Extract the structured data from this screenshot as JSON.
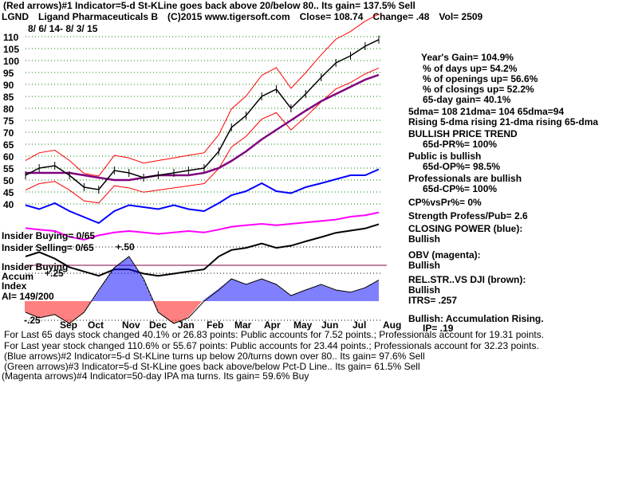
{
  "header": {
    "line1": "(Red arrows)#1 Indicator=5-d St-KLine goes back above 20/below 80.. Its gain= 137.5% Sell",
    "ticker": "LGND",
    "company": "Ligand Pharmaceuticals B",
    "copyright": "(C)2015 www.tigersoft.com",
    "close": "Close=  108.74",
    "change": "Change= .48",
    "vol": "Vol= 2509",
    "date_range": "8/ 6/ 14- 8/ 3/ 15"
  },
  "panel": [
    "Year's Gain= 104.9%",
    "% of days up= 54.2%",
    "% of openings up= 56.6%",
    "% of closings up= 52.2%",
    "65-day gain= 40.1%",
    "5dma= 108 21dma= 104 65dma=94",
    "Rising 5-dma  rising 21-dma  rising 65-dma",
    "BULLISH PRICE TREND",
    "65d-PR%= 100%",
    "Public is bullish",
    "65d-OP%= 98.5%",
    "Professionals are bullish",
    "65d-CP%= 100%",
    "CP%vsPr%=  0%",
    "Strength Profess/Pub= 2.6",
    "CLOSING POWER (blue):",
    "Bullish",
    "OBV (magenta):",
    "Bullish",
    "REL.STR..VS DJI (brown):",
    "Bullish",
    "ITRS= .257",
    "Bullish: Accumulation Rising.",
    "IP=  .19"
  ],
  "left_labels": {
    "insider_buying": "Insider Buying= 0/65",
    "insider_selling": "Insider Selling= 0/65",
    "insider_buying2": "Insider Buying",
    "accum": "Accum",
    "index": "Index",
    "ai": "AI= 149/200"
  },
  "footer": [
    "For Last 65 days stock changed  40.1% or  26.83 points:  Public accounts for  7.52 points.;  Professionals account for  19.31 points.",
    "For Last year stock changed  110.6% or  55.67 points:  Public accounts for  23.44 points.;  Professionals account for  32.23 points.",
    "(Blue arrows)#2 Indicator=5-d St-KLine turns up below 20/turns down over 80.. Its gain= 97.6% Sell",
    "(Green arrows)#3 Indicator=5-d St-KLine goes back above/below Pct-D Line.. Its gain= 61.5% Sell",
    "(Magenta arrows)#4 Indicator=50-day IPA ma turns. Its gain= 59.6% Buy"
  ],
  "colors": {
    "price": "#000000",
    "bands": "#ff0000",
    "ma65": "#800080",
    "closing_power": "#0000ff",
    "obv": "#ff00ff",
    "rel_strength": "#000000",
    "accum_pos": "#0000ff",
    "accum_neg": "#ff0000",
    "grid": "#008000"
  },
  "chart_data": {
    "type": "line",
    "title": "",
    "y_ticks": [
      110,
      105,
      100,
      95,
      90,
      85,
      80,
      75,
      70,
      65,
      60,
      55,
      50,
      45,
      40
    ],
    "ylim": [
      40,
      110
    ],
    "accum_ticks": [
      "+.50",
      "+.25",
      "-.25"
    ],
    "months": [
      "Sep",
      "Oct",
      "Nov",
      "Dec",
      "Jan",
      "Feb",
      "Mar",
      "Apr",
      "May",
      "Jun",
      "Jul",
      "Aug"
    ],
    "dates": [
      "2014-08-06",
      "2014-08-20",
      "2014-09-05",
      "2014-09-20",
      "2014-10-05",
      "2014-10-20",
      "2014-11-05",
      "2014-11-20",
      "2014-12-05",
      "2014-12-20",
      "2015-01-05",
      "2015-01-20",
      "2015-02-05",
      "2015-02-20",
      "2015-03-05",
      "2015-03-20",
      "2015-04-05",
      "2015-04-20",
      "2015-05-05",
      "2015-05-20",
      "2015-06-05",
      "2015-06-20",
      "2015-07-05",
      "2015-07-20",
      "2015-08-03"
    ],
    "price": [
      52,
      55,
      56,
      52,
      47,
      46,
      54,
      53,
      51,
      52,
      53,
      54,
      55,
      62,
      72,
      77,
      85,
      88,
      80,
      86,
      93,
      99,
      102,
      106,
      108.74
    ],
    "ma65": [
      53,
      53,
      53,
      53,
      52,
      51,
      50,
      50,
      51,
      52,
      52,
      52,
      53,
      55,
      58,
      62,
      67,
      71,
      75,
      79,
      83,
      86,
      89,
      92,
      94
    ],
    "closing_power": [
      -0.3,
      -0.5,
      -0.2,
      -0.6,
      -0.9,
      -1.2,
      -0.6,
      -0.3,
      -0.4,
      -0.5,
      -0.3,
      -0.5,
      -0.6,
      -0.2,
      0.2,
      0.4,
      0.8,
      0.4,
      0.3,
      0.6,
      0.8,
      1.0,
      1.2,
      1.2,
      1.5
    ],
    "obv": [
      0.2,
      0.1,
      0.0,
      -0.4,
      -0.6,
      -0.3,
      -0.1,
      0.0,
      -0.1,
      -0.2,
      -0.1,
      0.0,
      -0.1,
      0.1,
      0.3,
      0.4,
      0.5,
      0.4,
      0.5,
      0.6,
      0.7,
      0.8,
      1.0,
      1.1,
      1.3
    ],
    "rel_strength": [
      0.3,
      0.5,
      0.2,
      -0.2,
      -0.4,
      -0.6,
      -0.3,
      -0.3,
      -0.5,
      -0.6,
      -0.5,
      -0.4,
      -0.3,
      0.3,
      0.6,
      0.7,
      0.9,
      0.7,
      0.8,
      1.0,
      1.2,
      1.4,
      1.5,
      1.6,
      1.8
    ],
    "accum_index": [
      -0.1,
      -0.15,
      -0.12,
      -0.2,
      -0.1,
      0.1,
      0.3,
      0.4,
      0.2,
      -0.1,
      -0.2,
      -0.15,
      0.0,
      0.1,
      0.2,
      0.15,
      0.2,
      0.15,
      0.05,
      0.1,
      0.15,
      0.1,
      0.08,
      0.12,
      0.19
    ]
  }
}
